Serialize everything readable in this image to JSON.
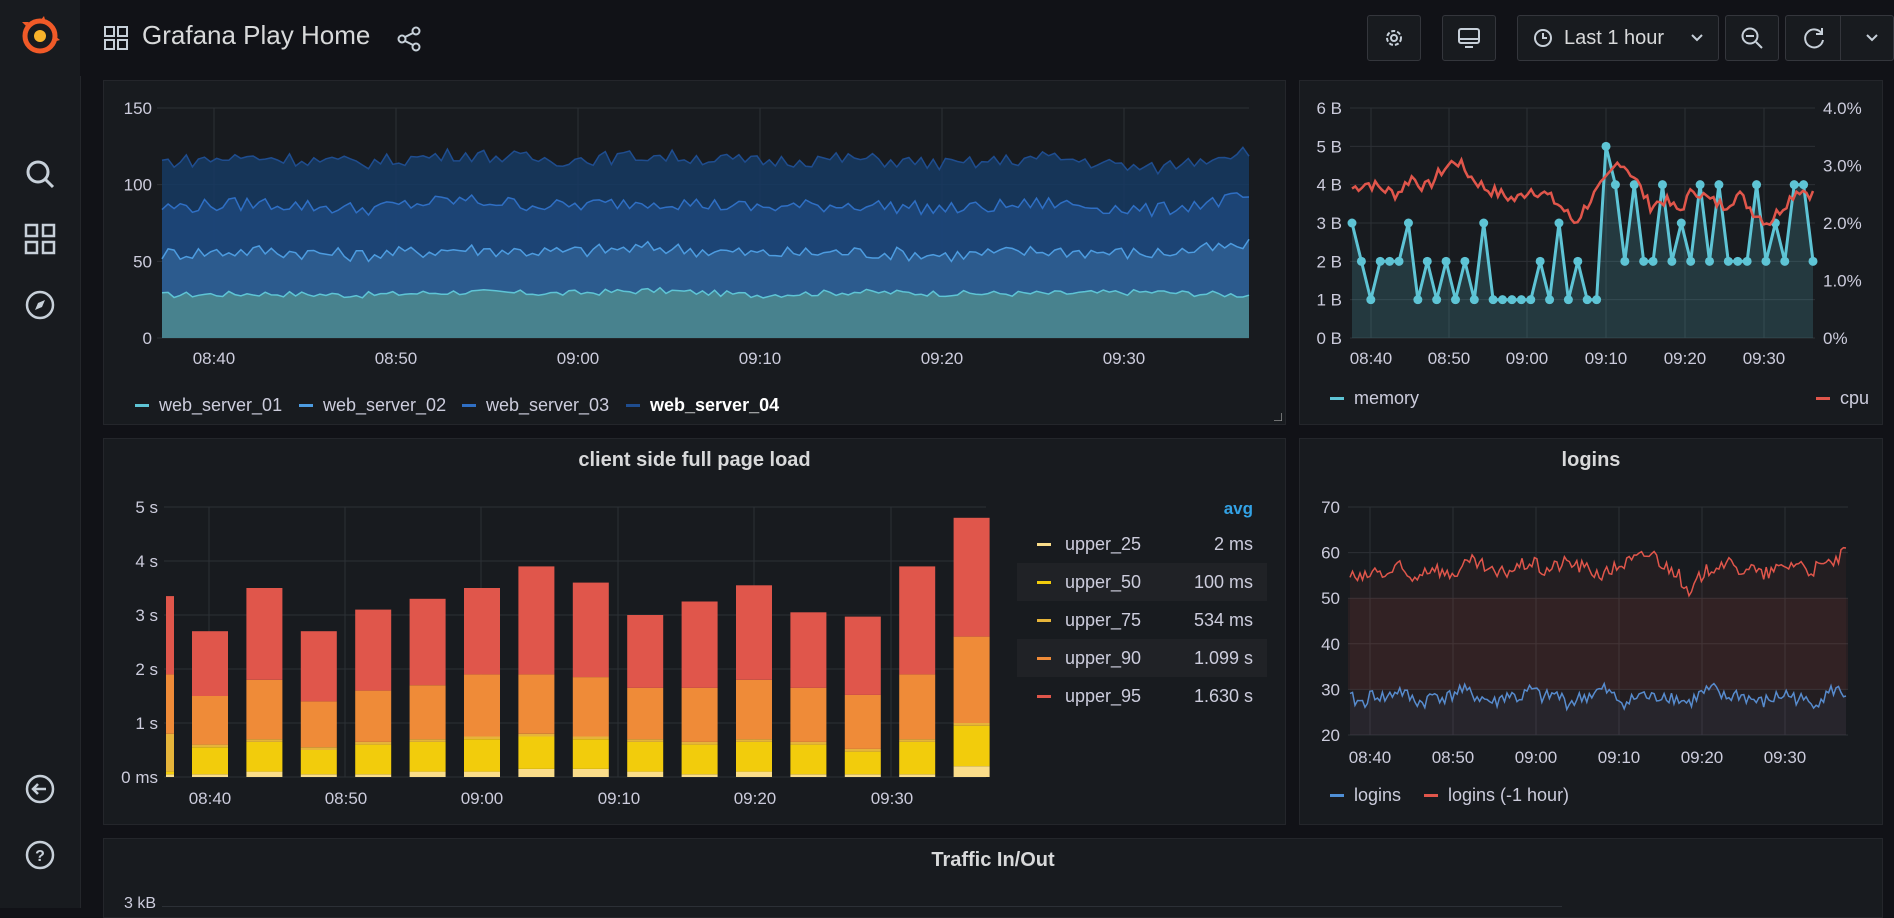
{
  "header": {
    "title": "Grafana Play Home",
    "time_range": "Last 1 hour"
  },
  "sidebar": {
    "icons": [
      "grafana-logo-icon",
      "search-icon",
      "dashboards-icon",
      "explore-icon",
      "sign-out-icon",
      "help-icon"
    ]
  },
  "colors": {
    "bg": "#111217",
    "panel": "#181b1f",
    "memory": "#5ec4d5",
    "cpu": "#e0564b",
    "logins": "#4f8fd6",
    "logins_prev": "#e0564b"
  },
  "panels": {
    "web_servers": {
      "legend": [
        "web_server_01",
        "web_server_02",
        "web_server_03",
        "web_server_04"
      ]
    },
    "mem_cpu": {
      "legend_left": "memory",
      "legend_right": "cpu"
    },
    "page_load": {
      "title": "client side full page load",
      "legend_header": "avg",
      "legend": [
        {
          "name": "upper_25",
          "value": "2 ms",
          "color": "#fadd8a"
        },
        {
          "name": "upper_50",
          "value": "100 ms",
          "color": "#f2cc0c"
        },
        {
          "name": "upper_75",
          "value": "534 ms",
          "color": "#e6b43a"
        },
        {
          "name": "upper_90",
          "value": "1.099 s",
          "color": "#ef8b38"
        },
        {
          "name": "upper_95",
          "value": "1.630 s",
          "color": "#e0564b"
        }
      ]
    },
    "logins": {
      "title": "logins",
      "legend": [
        "logins",
        "logins (-1 hour)"
      ]
    },
    "traffic": {
      "title": "Traffic In/Out",
      "partial_tick": "3 kB"
    }
  },
  "chart_data": [
    {
      "type": "area",
      "id": "web_servers",
      "x_ticks": [
        "08:40",
        "08:50",
        "09:00",
        "09:10",
        "09:20",
        "09:30"
      ],
      "y_ticks": [
        "0",
        "50",
        "100",
        "150"
      ],
      "ylim": [
        0,
        150
      ],
      "series": [
        {
          "name": "web_server_01",
          "values": [
            28,
            29,
            28,
            30,
            29,
            31,
            28,
            30,
            29,
            29,
            30,
            28
          ],
          "color": "#5ec4d5"
        },
        {
          "name": "web_server_02",
          "values": [
            55,
            57,
            54,
            58,
            56,
            59,
            55,
            56,
            54,
            57,
            55,
            60
          ],
          "color": "#4d9ce0"
        },
        {
          "name": "web_server_03",
          "values": [
            85,
            88,
            84,
            90,
            86,
            89,
            85,
            87,
            84,
            88,
            83,
            92
          ],
          "color": "#2f6fc4"
        },
        {
          "name": "web_server_04",
          "values": [
            115,
            118,
            114,
            120,
            116,
            119,
            115,
            117,
            113,
            118,
            110,
            123
          ],
          "color": "#1f4d8f"
        }
      ]
    },
    {
      "type": "line",
      "id": "mem_cpu",
      "x_ticks": [
        "08:40",
        "08:50",
        "09:00",
        "09:10",
        "09:20",
        "09:30"
      ],
      "y_ticks_left": [
        "0 B",
        "1 B",
        "2 B",
        "3 B",
        "4 B",
        "5 B",
        "6 B"
      ],
      "y_ticks_right": [
        "0%",
        "1.0%",
        "2.0%",
        "3.0%",
        "4.0%"
      ],
      "series": [
        {
          "name": "memory",
          "axis": "left",
          "values": [
            3,
            2,
            1,
            2,
            2,
            2,
            3,
            1,
            2,
            1,
            2,
            1,
            2,
            1,
            3,
            1,
            1,
            1,
            1,
            1,
            2,
            1,
            3,
            1,
            2,
            1,
            1,
            5,
            4,
            2,
            4,
            2,
            2,
            4,
            2,
            3,
            2,
            4,
            2,
            4,
            2,
            2,
            2,
            4,
            2,
            3,
            2,
            4,
            4,
            2
          ]
        },
        {
          "name": "cpu",
          "axis": "right",
          "values": [
            2.6,
            2.7,
            2.6,
            2.5,
            2.8,
            2.6,
            2.9,
            3.1,
            2.8,
            2.6,
            2.5,
            2.4,
            2.6,
            2.5,
            2.3,
            2.0,
            2.4,
            2.7,
            3.1,
            2.8,
            2.3,
            2.4,
            2.2,
            2.6,
            2.4,
            2.3,
            2.5,
            2.2,
            2.0,
            2.3,
            2.6,
            2.5
          ]
        }
      ]
    },
    {
      "type": "bar",
      "id": "page_load",
      "stacked": true,
      "x_ticks": [
        "08:40",
        "08:50",
        "09:00",
        "09:10",
        "09:20",
        "09:30"
      ],
      "y_ticks": [
        "0 ms",
        "1 s",
        "2 s",
        "3 s",
        "4 s",
        "5 s"
      ],
      "ylim": [
        0,
        5
      ],
      "series": [
        {
          "name": "upper_25",
          "values": [
            0.05,
            0.05,
            0.1,
            0.05,
            0.05,
            0.1,
            0.1,
            0.15,
            0.15,
            0.1,
            0.05,
            0.1,
            0.05,
            0.05,
            0.05,
            0.2
          ]
        },
        {
          "name": "upper_50",
          "values": [
            0.05,
            0.5,
            0.55,
            0.45,
            0.55,
            0.55,
            0.6,
            0.6,
            0.55,
            0.55,
            0.55,
            0.55,
            0.55,
            0.42,
            0.6,
            0.75
          ]
        },
        {
          "name": "upper_75",
          "values": [
            0.7,
            0.05,
            0.05,
            0.05,
            0.05,
            0.05,
            0.05,
            0.05,
            0.05,
            0.05,
            0.05,
            0.05,
            0.05,
            0.05,
            0.05,
            0.05
          ]
        },
        {
          "name": "upper_90",
          "values": [
            1.1,
            0.9,
            1.1,
            0.85,
            0.95,
            1.0,
            1.15,
            1.1,
            1.1,
            0.95,
            1.0,
            1.1,
            1.0,
            1.0,
            1.2,
            1.6
          ]
        },
        {
          "name": "upper_95",
          "values": [
            1.45,
            1.2,
            1.7,
            1.3,
            1.5,
            1.6,
            1.6,
            2.0,
            1.75,
            1.35,
            1.6,
            1.75,
            1.4,
            1.45,
            2.0,
            2.2
          ]
        }
      ]
    },
    {
      "type": "line",
      "id": "logins",
      "x_ticks": [
        "08:40",
        "08:50",
        "09:00",
        "09:10",
        "09:20",
        "09:30"
      ],
      "y_ticks": [
        "20",
        "30",
        "40",
        "50",
        "60",
        "70"
      ],
      "ylim": [
        20,
        70
      ],
      "series": [
        {
          "name": "logins",
          "values": [
            28,
            27,
            29,
            28,
            30,
            28,
            27,
            29,
            28,
            30,
            29,
            28,
            27,
            29,
            28,
            30,
            28,
            29,
            27,
            28,
            29,
            30,
            28,
            27,
            29,
            28,
            29,
            28,
            27,
            29,
            30,
            28,
            29,
            28,
            27,
            28,
            29,
            28,
            27,
            28,
            30,
            29
          ]
        },
        {
          "name": "logins (-1 hour)",
          "values": [
            55,
            54,
            56,
            55,
            57,
            54,
            56,
            57,
            55,
            56,
            58,
            57,
            55,
            56,
            57,
            58,
            56,
            57,
            58,
            57,
            56,
            55,
            57,
            58,
            59,
            60,
            57,
            56,
            50,
            55,
            57,
            58,
            56,
            57,
            55,
            56,
            57,
            58,
            56,
            57,
            58,
            60
          ]
        }
      ]
    }
  ]
}
